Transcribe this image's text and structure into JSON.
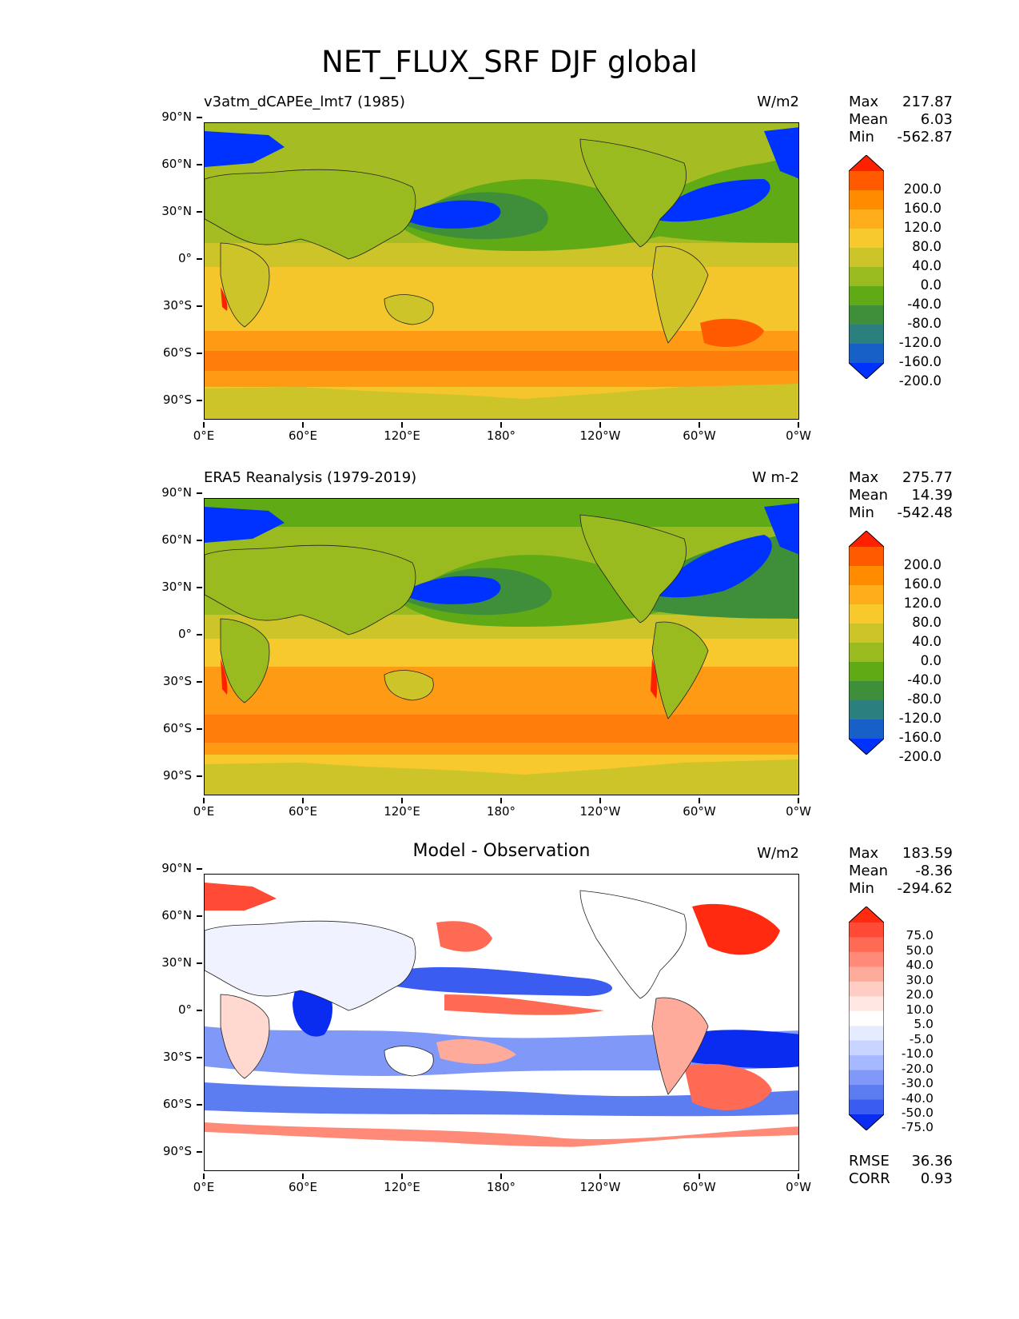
{
  "title": "NET_FLUX_SRF DJF global",
  "panels": [
    {
      "label_left": "v3atm_dCAPEe_lmt7 (1985)",
      "label_center": "",
      "units": "W/m2",
      "stats": {
        "max_label": "Max",
        "max": "217.87",
        "mean_label": "Mean",
        "mean": "6.03",
        "min_label": "Min",
        "min": "-562.87"
      },
      "colorbar_labels": [
        "200.0",
        "160.0",
        "120.0",
        "80.0",
        "40.0",
        "0.0",
        "-40.0",
        "-80.0",
        "-120.0",
        "-160.0",
        "-200.0"
      ],
      "colorbar_colors": [
        "#ff2000",
        "#ff5a00",
        "#ff8c00",
        "#ffad1a",
        "#f7c92c",
        "#ccc428",
        "#9abb1f",
        "#5faa15",
        "#3f8f3a",
        "#2b7f7d",
        "#1660c8",
        "#0032ff"
      ]
    },
    {
      "label_left": "ERA5 Reanalysis (1979-2019)",
      "label_center": "",
      "units": "W m-2",
      "stats": {
        "max_label": "Max",
        "max": "275.77",
        "mean_label": "Mean",
        "mean": "14.39",
        "min_label": "Min",
        "min": "-542.48"
      },
      "colorbar_labels": [
        "200.0",
        "160.0",
        "120.0",
        "80.0",
        "40.0",
        "0.0",
        "-40.0",
        "-80.0",
        "-120.0",
        "-160.0",
        "-200.0"
      ],
      "colorbar_colors": [
        "#ff2000",
        "#ff5a00",
        "#ff8c00",
        "#ffad1a",
        "#f7c92c",
        "#ccc428",
        "#9abb1f",
        "#5faa15",
        "#3f8f3a",
        "#2b7f7d",
        "#1660c8",
        "#0032ff"
      ]
    },
    {
      "label_left": "",
      "label_center": "Model - Observation",
      "units": "W/m2",
      "stats": {
        "max_label": "Max",
        "max": "183.59",
        "mean_label": "Mean",
        "mean": "-8.36",
        "min_label": "Min",
        "min": "-294.62"
      },
      "colorbar_labels": [
        "75.0",
        "50.0",
        "40.0",
        "30.0",
        "20.0",
        "10.0",
        "5.0",
        "-5.0",
        "-10.0",
        "-20.0",
        "-30.0",
        "-40.0",
        "-50.0",
        "-75.0"
      ],
      "colorbar_colors": [
        "#ff2a10",
        "#ff4a35",
        "#ff6a55",
        "#ff8a78",
        "#ffab9c",
        "#ffcdc3",
        "#ffe8e3",
        "#ffffff",
        "#e6ecff",
        "#c8d4ff",
        "#a6b8ff",
        "#8098f8",
        "#5c7cf2",
        "#3a5cf0",
        "#0a2cf0"
      ],
      "rmse_label": "RMSE",
      "rmse": "36.36",
      "corr_label": "CORR",
      "corr": "0.93"
    }
  ],
  "axes": {
    "y_ticks": [
      "90°N",
      "60°N",
      "30°N",
      "0°",
      "30°S",
      "60°S",
      "90°S"
    ],
    "x_ticks": [
      "0°E",
      "60°E",
      "120°E",
      "180°",
      "120°W",
      "60°W",
      "0°W"
    ]
  }
}
